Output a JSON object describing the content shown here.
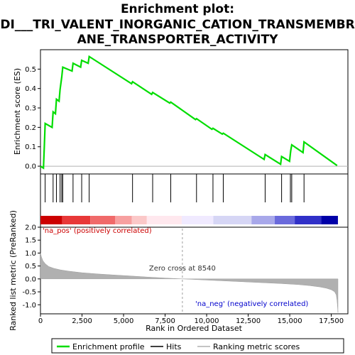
{
  "chart_data": {
    "type": "line",
    "title_lines": [
      "Enrichment plot:",
      "DI___TRI_VALENT_INORGANIC_CATION_TRANSMEMBR",
      "ANE_TRANSPORTER_ACTIVITY"
    ],
    "ylabel_top": "Enrichment score (ES)",
    "ylabel_bottom": "Ranked list metric (PreRanked)",
    "xlabel": "Rank in Ordered Dataset",
    "xlim": [
      0,
      18500
    ],
    "x_ticks": [
      "0",
      "2,500",
      "5,000",
      "7,500",
      "10,000",
      "12,500",
      "15,000",
      "17,500"
    ],
    "x_tick_values": [
      0,
      2500,
      5000,
      7500,
      10000,
      12500,
      15000,
      17500
    ],
    "top_ylim": [
      -0.04,
      0.6
    ],
    "top_y_ticks": [
      "0.0",
      "0.1",
      "0.2",
      "0.3",
      "0.4",
      "0.5"
    ],
    "top_y_tick_values": [
      0.0,
      0.1,
      0.2,
      0.3,
      0.4,
      0.5
    ],
    "bottom_ylim": [
      -1.35,
      2.0
    ],
    "bottom_y_ticks": [
      "-1.0",
      "-0.5",
      "0.0",
      "0.5",
      "1.0",
      "1.5",
      "2.0"
    ],
    "bottom_y_tick_values": [
      -1.0,
      -0.5,
      0.0,
      0.5,
      1.0,
      1.5,
      2.0
    ],
    "enrichment_profile": {
      "name": "Enrichment profile",
      "color": "#00dd00",
      "x": [
        0,
        180,
        230,
        280,
        700,
        760,
        900,
        960,
        1120,
        1180,
        1280,
        1340,
        1900,
        1960,
        2420,
        2480,
        2870,
        2930,
        5480,
        5540,
        6690,
        6750,
        7780,
        7840,
        9330,
        9390,
        10320,
        10380,
        10940,
        11000,
        13460,
        13520,
        14450,
        14510,
        14990,
        15040,
        15060,
        15120,
        15800,
        15860,
        17850
      ],
      "y": [
        0.0,
        -0.01,
        0.1,
        0.22,
        0.2,
        0.28,
        0.27,
        0.345,
        0.335,
        0.395,
        0.46,
        0.51,
        0.49,
        0.53,
        0.51,
        0.545,
        0.53,
        0.565,
        0.425,
        0.435,
        0.37,
        0.38,
        0.325,
        0.33,
        0.24,
        0.245,
        0.19,
        0.195,
        0.165,
        0.17,
        0.035,
        0.06,
        0.01,
        0.05,
        0.025,
        0.065,
        0.08,
        0.11,
        0.07,
        0.125,
        0.003
      ]
    },
    "hits": [
      280,
      760,
      960,
      1180,
      1280,
      1340,
      1960,
      2480,
      2930,
      5540,
      6750,
      7840,
      9390,
      10380,
      11000,
      13520,
      14510,
      15040,
      15120,
      15860
    ],
    "hits_color": "#000000",
    "colorbar": {
      "stops": [
        "#cc0000",
        "#e83838",
        "#f06a6a",
        "#f7a0a0",
        "#fbc8c8",
        "#ffe8ee",
        "#f0eaff",
        "#d6d6f5",
        "#a8a8ea",
        "#6a6adc",
        "#3030c8",
        "#0000a8"
      ],
      "boundaries": [
        0,
        1300,
        3000,
        4500,
        5500,
        6400,
        8500,
        10400,
        12700,
        14100,
        15300,
        16900,
        17900
      ]
    },
    "ranked_metric": {
      "name": "Ranking metric scores",
      "color": "#b0b0b0",
      "x": [
        0,
        60,
        150,
        300,
        500,
        800,
        1200,
        1700,
        2500,
        3500,
        4500,
        5500,
        6500,
        7500,
        8540,
        9500,
        10500,
        11500,
        12500,
        13500,
        14500,
        15500,
        16200,
        16800,
        17200,
        17500,
        17700,
        17800,
        17850,
        17900
      ],
      "y": [
        1.0,
        0.85,
        0.7,
        0.58,
        0.48,
        0.41,
        0.35,
        0.3,
        0.24,
        0.19,
        0.15,
        0.11,
        0.07,
        0.035,
        0.0,
        -0.03,
        -0.06,
        -0.09,
        -0.12,
        -0.15,
        -0.18,
        -0.22,
        -0.26,
        -0.31,
        -0.36,
        -0.42,
        -0.5,
        -0.62,
        -0.85,
        -1.3
      ]
    },
    "zero_cross_label": "Zero cross at 8540",
    "zero_cross_x": 8540,
    "pos_label": "'na_pos' (positively correlated)",
    "pos_color": "#cc0000",
    "neg_label": "'na_neg' (negatively correlated)",
    "neg_color": "#0000cc",
    "legend": {
      "entries": [
        {
          "label": "Enrichment profile",
          "color": "#00dd00"
        },
        {
          "label": "Hits",
          "color": "#000000"
        },
        {
          "label": "Ranking metric scores",
          "color": "#b0b0b0"
        }
      ],
      "placement": "bottom"
    }
  }
}
